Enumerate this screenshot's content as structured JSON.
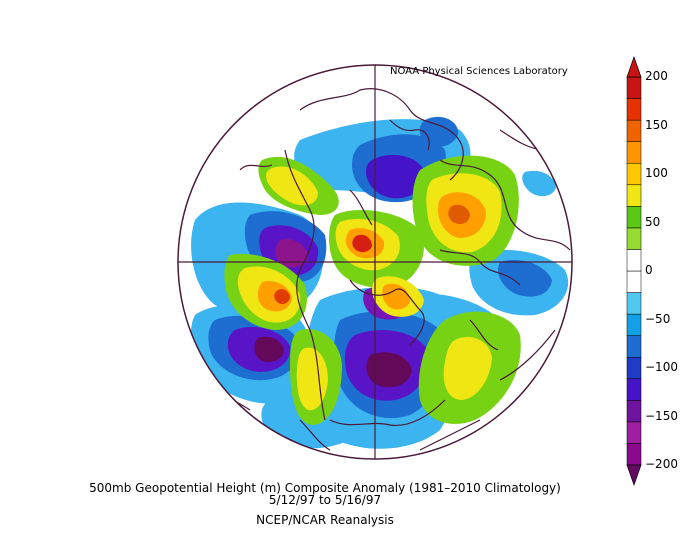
{
  "header": {
    "lab_label": "NOAA Physical Sciences Laboratory"
  },
  "caption": {
    "line1": "500mb Geopotential Height (m) Composite Anomaly (1981–2010 Climatology)",
    "line2": "5/12/97   to 5/16/97",
    "line3": "NCEP/NCAR Reanalysis"
  },
  "colorbar": {
    "ticks": [
      "200",
      "150",
      "100",
      "50",
      "0",
      "−50",
      "−100",
      "−150",
      "−200"
    ],
    "colors": [
      "#8c0a8c",
      "#a01ea0",
      "#6e14a0",
      "#4614c8",
      "#1e3cc8",
      "#1e6ed2",
      "#14a0e6",
      "#50c8f0",
      "#ffffff",
      "#ffffff",
      "#96dc32",
      "#5ac814",
      "#f0e614",
      "#ffc800",
      "#ff9600",
      "#f06400",
      "#e63200",
      "#c81414"
    ],
    "over_color": "#c81414",
    "under_color": "#640a64"
  },
  "map": {
    "projection": "polar stereographic (north pole)",
    "colors": {
      "boundary": "#4a1a3a",
      "strong_negative": "#5a0a5a",
      "negative": "#7814c8",
      "blue": "#1e6ed2",
      "light_blue": "#1eaaf0",
      "green": "#78d214",
      "yellow": "#f0e614",
      "orange": "#ffa000",
      "red": "#e03c00",
      "dark_red": "#c81414"
    }
  }
}
